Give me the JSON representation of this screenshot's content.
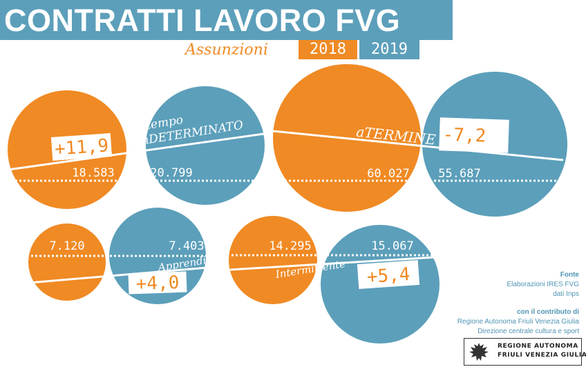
{
  "title": "CONTRATTI LAVORO FVG",
  "subtitle": "Assunzioni",
  "years": [
    "2018",
    "2019"
  ],
  "colors": {
    "y2018": "#f08a24",
    "y2019": "#5c9fba"
  },
  "chart_data": [
    {
      "type": "bubble",
      "label": "A tempo inDETERMINATO",
      "label_lines": [
        "A tempo",
        "inDETERMINATO"
      ],
      "values": {
        "2018": "18.583",
        "2019": "20.799"
      },
      "change": "+11,9"
    },
    {
      "type": "bubble",
      "label": "aTERMINE",
      "label_lines": [
        "aTERMINE"
      ],
      "values": {
        "2018": "60.027",
        "2019": "55.687"
      },
      "change": "-7,2"
    },
    {
      "type": "bubble",
      "label": "Apprendistato",
      "label_lines": [
        "Apprendistato"
      ],
      "values": {
        "2018": "7.120",
        "2019": "7.403"
      },
      "change": "+4,0"
    },
    {
      "type": "bubble",
      "label": "Intermittente",
      "label_lines": [
        "Intermittente"
      ],
      "values": {
        "2018": "14.295",
        "2019": "15.067"
      },
      "change": "+5,4"
    }
  ],
  "source": {
    "heading": "Fonte",
    "lines": [
      "Elaborazioni IRES FVG",
      "dati Inps"
    ],
    "contrib_heading": "con il contributo di",
    "contrib_lines": [
      "Regione Autonoma Friuli Venezia Giulia",
      "Direzione centrale cultura e sport"
    ]
  },
  "logo": {
    "line1": "REGIONE AUTONOMA",
    "line2": "FRIULI VENEZIA GIULIA",
    "icon": "eagle-icon"
  }
}
